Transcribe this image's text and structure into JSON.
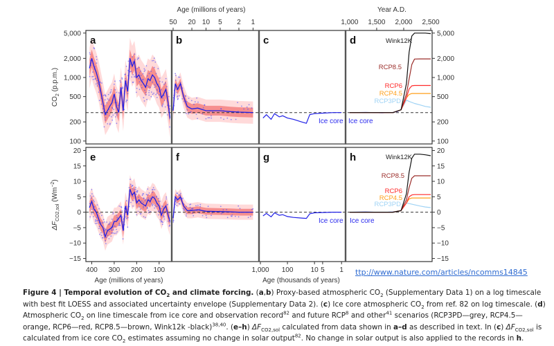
{
  "figure": {
    "top_axis_left_title": "Age (millions of years)",
    "top_axis_left_ticks": [
      "50",
      "20",
      "10",
      "5",
      "2",
      "1"
    ],
    "top_axis_right_title": "Year A.D.",
    "top_axis_right_ticks": [
      "1,000",
      "1,500",
      "2,000",
      "2,500"
    ],
    "bottom_axis_left_title": "Age (millions of years)",
    "bottom_axis_left_ticks": [
      "400",
      "300",
      "200",
      "100"
    ],
    "bottom_axis_mid_title": "Age (thousands of years)",
    "bottom_axis_mid_ticks": [
      "1,000",
      "100",
      "10",
      "5",
      "1"
    ],
    "top_y_label_main": "CO",
    "top_y_label_sub": "2",
    "top_y_label_tail": " (p.p.m.)",
    "bottom_y_label_main": "ΔF",
    "bottom_y_label_sub": "CO2,sol",
    "bottom_y_label_tail": " (Wm",
    "bottom_y_label_sup": "−2",
    "bottom_y_label_end": ")",
    "top_y_ticks": [
      "5,000",
      "2,000",
      "1,000",
      "500",
      "200",
      "100"
    ],
    "bottom_y_ticks": [
      "20",
      "15",
      "10",
      "5",
      "0",
      "−5",
      "−10",
      "−15"
    ],
    "panel_labels": [
      "a",
      "b",
      "c",
      "d",
      "e",
      "f",
      "g",
      "h"
    ],
    "ice_core_label": "Ice core",
    "scenario_labels": [
      "Wink12K",
      "RCP8.5",
      "RCP6",
      "RCP4.5",
      "RCP3PD"
    ]
  },
  "chart_data": [
    {
      "type": "line",
      "title": "Panel a-d: Atmospheric CO2",
      "ylabel": "CO2 (p.p.m.)",
      "yscale": "log",
      "ylim": [
        90,
        5500
      ],
      "yticks": [
        100,
        200,
        500,
        1000,
        2000,
        5000
      ],
      "reference_line": 280,
      "panels": {
        "a": {
          "xlabel": "Age (millions of years)",
          "xlim": [
            420,
            50
          ],
          "loess_x": [
            410,
            400,
            390,
            380,
            370,
            360,
            350,
            340,
            330,
            320,
            310,
            300,
            290,
            280,
            270,
            260,
            250,
            240,
            230,
            220,
            210,
            200,
            190,
            180,
            170,
            160,
            150,
            140,
            130,
            120,
            110,
            100,
            90,
            80,
            70,
            60,
            52
          ],
          "loess_y": [
            1400,
            2000,
            1500,
            1200,
            900,
            600,
            400,
            260,
            300,
            350,
            400,
            550,
            350,
            280,
            700,
            300,
            900,
            600,
            2000,
            1500,
            1800,
            1000,
            1100,
            900,
            800,
            700,
            950,
            900,
            1100,
            1000,
            800,
            700,
            480,
            550,
            650,
            400,
            230
          ]
        },
        "b": {
          "xlabel": "Age (millions of years)",
          "xlim": [
            50,
            0.8
          ],
          "loess_x": [
            50,
            45,
            40,
            35,
            30,
            25,
            20,
            15,
            10,
            5,
            3,
            2,
            1
          ],
          "loess_y": [
            300,
            800,
            650,
            800,
            500,
            350,
            320,
            330,
            300,
            300,
            290,
            285,
            280
          ]
        },
        "c": {
          "xlabel": "Age (thousands of years)",
          "xlim": [
            1000,
            0.8
          ],
          "loess_x": [
            800,
            600,
            400,
            300,
            200,
            150,
            100,
            60,
            30,
            20,
            15,
            10,
            5,
            2,
            1
          ],
          "loess_y": [
            230,
            260,
            220,
            270,
            240,
            250,
            230,
            220,
            200,
            190,
            260,
            270,
            275,
            280,
            280
          ]
        },
        "d": {
          "xlabel": "Year A.D.",
          "xlim": [
            950,
            2500
          ],
          "series": [
            {
              "name": "Wink12K",
              "color": "#111111",
              "x": [
                1000,
                1800,
                1950,
                2050,
                2100,
                2150,
                2200,
                2300,
                2400,
                2500
              ],
              "y": [
                280,
                280,
                310,
                800,
                2500,
                4500,
                5000,
                5000,
                5000,
                4900
              ]
            },
            {
              "name": "RCP8.5",
              "color": "#9b2d2a",
              "x": [
                1000,
                1800,
                1950,
                2050,
                2100,
                2150,
                2200,
                2300,
                2400,
                2500
              ],
              "y": [
                280,
                280,
                310,
                550,
                950,
                1600,
                1950,
                1960,
                1960,
                1960
              ]
            },
            {
              "name": "RCP6",
              "color": "#ff2a2a",
              "x": [
                1000,
                1800,
                1950,
                2050,
                2100,
                2150,
                2200,
                2300,
                2400,
                2500
              ],
              "y": [
                280,
                280,
                310,
                480,
                660,
                740,
                750,
                750,
                750,
                750
              ]
            },
            {
              "name": "RCP4.5",
              "color": "#ff9f1a",
              "x": [
                1000,
                1800,
                1950,
                2050,
                2100,
                2150,
                2200,
                2300,
                2400,
                2500
              ],
              "y": [
                280,
                280,
                310,
                480,
                540,
                560,
                560,
                560,
                560,
                560
              ]
            },
            {
              "name": "RCP3PD",
              "color": "#9fd3f5",
              "x": [
                1000,
                1800,
                1950,
                2050,
                2100,
                2200,
                2300,
                2400,
                2500
              ],
              "y": [
                280,
                280,
                310,
                440,
                420,
                390,
                370,
                350,
                340
              ]
            },
            {
              "name": "Ice core",
              "color": "#2222ee",
              "x": [
                1000,
                1300,
                1600,
                1800,
                1900
              ],
              "y": [
                280,
                282,
                278,
                282,
                295
              ]
            }
          ]
        }
      }
    },
    {
      "type": "line",
      "title": "Panel e-h: Climate forcing",
      "ylabel": "ΔF CO2,sol (Wm−2)",
      "ylim": [
        -16,
        21
      ],
      "yticks": [
        -15,
        -10,
        -5,
        0,
        5,
        10,
        15,
        20
      ],
      "reference_line": 0,
      "panels": {
        "e": {
          "xlabel": "Age (millions of years)",
          "xlim": [
            420,
            50
          ],
          "loess_x": [
            410,
            400,
            390,
            380,
            370,
            360,
            350,
            340,
            330,
            320,
            310,
            300,
            290,
            280,
            270,
            260,
            250,
            240,
            230,
            220,
            210,
            200,
            190,
            180,
            170,
            160,
            150,
            140,
            130,
            120,
            110,
            100,
            90,
            80,
            70,
            60,
            52
          ],
          "loess_y": [
            1.5,
            3.5,
            1,
            0,
            -2,
            -4,
            -5,
            -8,
            -6,
            -5.5,
            -5,
            -3,
            -3,
            -2,
            -1,
            -6,
            2,
            -1,
            7.5,
            5.5,
            6.5,
            3,
            4,
            3,
            2.5,
            2,
            4,
            3.5,
            5,
            4.5,
            3,
            2,
            -1,
            1,
            2,
            -1,
            -3
          ]
        },
        "f": {
          "xlabel": "Age (millions of years)",
          "xlim": [
            50,
            0.8
          ],
          "loess_x": [
            50,
            45,
            40,
            35,
            30,
            25,
            20,
            15,
            10,
            5,
            3,
            2,
            1
          ],
          "loess_y": [
            -2,
            5,
            4,
            5,
            2,
            0.5,
            0.5,
            0.8,
            0.3,
            0.2,
            0.1,
            0,
            0
          ]
        },
        "g": {
          "xlabel": "Age (thousands of years)",
          "xlim": [
            1000,
            0.8
          ],
          "loess_x": [
            800,
            600,
            400,
            300,
            200,
            150,
            100,
            60,
            30,
            20,
            15,
            10,
            5,
            2,
            1
          ],
          "loess_y": [
            -1.2,
            -0.4,
            -1.5,
            -0.2,
            -1,
            -0.8,
            -1.4,
            -1.7,
            -1.9,
            -2,
            -0.5,
            -0.2,
            -0.1,
            0,
            0
          ]
        },
        "h": {
          "xlabel": "Year A.D.",
          "xlim": [
            950,
            2500
          ],
          "series": [
            {
              "name": "Wink12K",
              "color": "#111111",
              "x": [
                1000,
                1800,
                1950,
                2050,
                2100,
                2150,
                2200,
                2300,
                2400,
                2500
              ],
              "y": [
                0,
                0,
                0.5,
                6,
                13,
                17.5,
                18.8,
                18.8,
                18.6,
                18.3
              ]
            },
            {
              "name": "RCP8.5",
              "color": "#9b2d2a",
              "x": [
                1000,
                1800,
                1950,
                2050,
                2100,
                2150,
                2200,
                2300,
                2400,
                2500
              ],
              "y": [
                0,
                0,
                0.5,
                4,
                8,
                11,
                11.8,
                11.8,
                11.8,
                11.8
              ]
            },
            {
              "name": "RCP6",
              "color": "#ff2a2a",
              "x": [
                1000,
                1800,
                1950,
                2050,
                2100,
                2150,
                2200,
                2300,
                2400,
                2500
              ],
              "y": [
                0,
                0,
                0.5,
                3,
                5,
                5.6,
                5.7,
                5.7,
                5.7,
                5.7
              ]
            },
            {
              "name": "RCP4.5",
              "color": "#ff9f1a",
              "x": [
                1000,
                1800,
                1950,
                2050,
                2100,
                2150,
                2200,
                2300,
                2400,
                2500
              ],
              "y": [
                0,
                0,
                0.5,
                3,
                4.3,
                4.6,
                4.6,
                4.6,
                4.6,
                4.6
              ]
            },
            {
              "name": "RCP3PD",
              "color": "#9fd3f5",
              "x": [
                1000,
                1800,
                1950,
                2050,
                2100,
                2200,
                2300,
                2400,
                2500
              ],
              "y": [
                0,
                0,
                0.5,
                3,
                2.8,
                2.4,
                2.0,
                1.7,
                1.5
              ]
            },
            {
              "name": "Ice core",
              "color": "#2222ee",
              "x": [
                1000,
                1300,
                1600,
                1800,
                1900
              ],
              "y": [
                0,
                0.05,
                -0.05,
                0.05,
                0.3
              ]
            }
          ]
        }
      }
    }
  ],
  "link": {
    "text": "ttp://www.nature.com/articles/ncomms14845"
  },
  "caption": {
    "fig_label": "Figure 4 | Temporal evolution of CO",
    "fig_label_sub": "2",
    "fig_label_tail": " and climate forcing.",
    "s1a": " (",
    "s1b_bold": "a",
    "s1c": ",",
    "s1d_bold": "b",
    "s1e": ") Proxy-based atmospheric CO",
    "s1_sub": "2",
    "s1f": " (Supplementary Data 1) on a log timescale with best fit LOESS and associated uncertainty envelope (Supplementary Data 2). (",
    "s2_bold": "c",
    "s2a": ") Ice core atmospheric CO",
    "s2_sub": "2",
    "s2b": " from ref. 82 on log timescale. (",
    "s3_bold": "d",
    "s3a": ") Atmospheric CO",
    "s3_sub": "2",
    "s3b": " on line timescale from ice core and observation record",
    "s3_sup1": "82",
    "s3c": " and future RCP",
    "s3_sup2": "8",
    "s3d": " and other",
    "s3_sup3": "41",
    "s3e": " scenarios (RCP3PD—grey, RCP4.5—orange, RCP6—red, RCP8.5—brown, Wink12k -black)",
    "s3_sup4": "38,40",
    "s3f": ". (",
    "s4_bold": "e–h",
    "s4a": ") ",
    "s4_italic": "ΔF",
    "s4_sub": "CO2,sol",
    "s4b": " calculated from data shown in ",
    "s4_bold2": "a–d",
    "s4c": " as described in text. In (",
    "s4_bold3": "c",
    "s4d": ") ",
    "s4_italic2": "ΔF",
    "s4_sub2": "CO2,sol",
    "s4e": " is calculated from ice core CO",
    "s4_sub3": "2",
    "s4f": " estimates assuming no change in solar output",
    "s4_sup": "82",
    "s4g": ". No change in solar output is also applied to the records in ",
    "s4_bold4": "h",
    "s4h": "."
  },
  "colors": {
    "loess_line": "#1f1fe6",
    "scatter": "#4a4aff",
    "envelope_outer": "#ffd3d3",
    "envelope_inner": "#f47c7c",
    "frame": "#333333",
    "link": "#2e6bd1"
  }
}
